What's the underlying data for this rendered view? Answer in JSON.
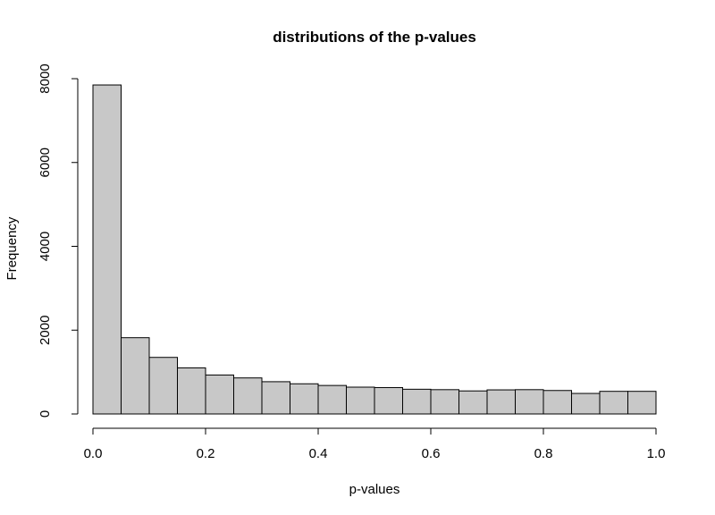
{
  "chart_data": {
    "type": "histogram",
    "title": "distributions of the p-values",
    "xlabel": "p-values",
    "ylabel": "Frequency",
    "bin_width": 0.05,
    "bin_starts": [
      0.0,
      0.05,
      0.1,
      0.15,
      0.2,
      0.25,
      0.3,
      0.35,
      0.4,
      0.45,
      0.5,
      0.55,
      0.6,
      0.65,
      0.7,
      0.75,
      0.8,
      0.85,
      0.9,
      0.95
    ],
    "values": [
      7850,
      1820,
      1350,
      1100,
      930,
      860,
      770,
      720,
      680,
      640,
      630,
      590,
      580,
      550,
      575,
      580,
      560,
      490,
      540,
      540
    ],
    "xlim": [
      0,
      1
    ],
    "ylim": [
      0,
      8000
    ],
    "x_ticks": [
      "0.0",
      "0.2",
      "0.4",
      "0.6",
      "0.8",
      "1.0"
    ],
    "y_ticks": [
      "0",
      "2000",
      "4000",
      "6000",
      "8000"
    ],
    "bar_fill": "#c8c8c8",
    "bar_stroke": "#000000",
    "grid": false,
    "legend": "none"
  }
}
